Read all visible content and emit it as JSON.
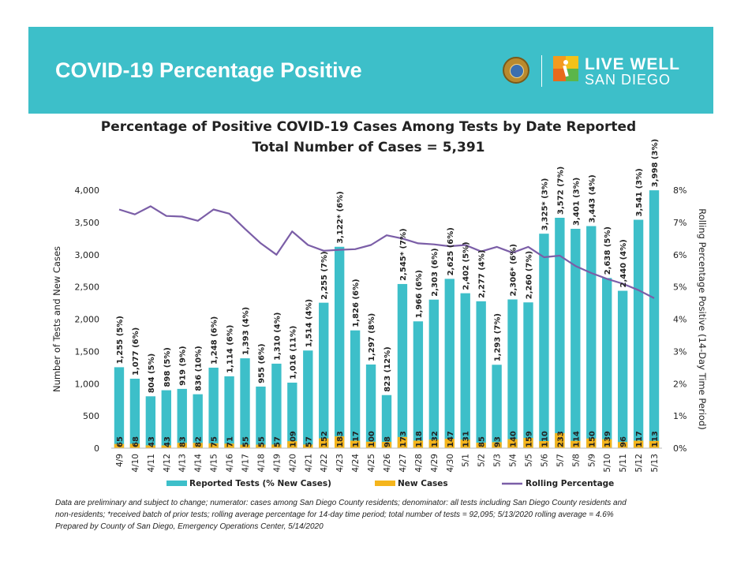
{
  "banner": {
    "title": "COVID-19 Percentage Positive",
    "logo_text_line1": "LIVE WELL",
    "logo_text_line2": "SAN DIEGO",
    "seal_icon": "county-seal-icon",
    "logo_icon": "live-well-figure-icon",
    "color": "#3dbfc9"
  },
  "chart_data": {
    "type": "bar",
    "title": "Percentage of Positive COVID-19 Cases Among Tests by Date Reported",
    "subtitle": "Total Number of Cases = 5,391",
    "ylabel": "Number of Tests and New Cases",
    "y2label": "Rolling Percentage Positive (14-Day Time Period)",
    "ylim": [
      0,
      4000
    ],
    "y2lim": [
      0,
      8
    ],
    "yticks": [
      "0",
      "500",
      "1,000",
      "1,500",
      "2,000",
      "2,500",
      "3,000",
      "3,500",
      "4,000"
    ],
    "y2ticks": [
      "0%",
      "1%",
      "2%",
      "3%",
      "4%",
      "5%",
      "6%",
      "7%",
      "8%"
    ],
    "categories": [
      "4/9",
      "4/10",
      "4/11",
      "4/12",
      "4/13",
      "4/14",
      "4/15",
      "4/16",
      "4/17",
      "4/18",
      "4/19",
      "4/20",
      "4/21",
      "4/22",
      "4/23",
      "4/24",
      "4/25",
      "4/26",
      "4/27",
      "4/28",
      "4/29",
      "4/30",
      "5/1",
      "5/2",
      "5/3",
      "5/4",
      "5/5",
      "5/6",
      "5/7",
      "5/8",
      "5/9",
      "5/10",
      "5/11",
      "5/12",
      "5/13"
    ],
    "series": [
      {
        "name": "Reported Tests (% New Cases)",
        "color": "#3dbfc9",
        "values": [
          1255,
          1077,
          804,
          898,
          919,
          836,
          1248,
          1114,
          1393,
          955,
          1310,
          1016,
          1514,
          2255,
          3122,
          1826,
          1297,
          823,
          2545,
          1966,
          2303,
          2625,
          2402,
          2277,
          1293,
          2306,
          2260,
          3325,
          3572,
          3401,
          3443,
          2638,
          2440,
          3541,
          3998
        ],
        "labels": [
          "1,255 (5%)",
          "1,077 (6%)",
          "804 (5%)",
          "898 (5%)",
          "919 (9%)",
          "836 (10%)",
          "1,248 (6%)",
          "1,114 (6%)",
          "1,393 (4%)",
          "955 (6%)",
          "1,310 (4%)",
          "1,016 (11%)",
          "1,514 (4%)",
          "2,255 (7%)",
          "3,122* (6%)",
          "1,826 (6%)",
          "1,297 (8%)",
          "823 (12%)",
          "2,545* (7%)",
          "1,966 (6%)",
          "2,303 (6%)",
          "2,625 (6%)",
          "2,402 (5%)",
          "2,277 (4%)",
          "1,293 (7%)",
          "2,306* (6%)",
          "2,260 (7%)",
          "3,325* (3%)",
          "3,572 (7%)",
          "3,401 (3%)",
          "3,443 (4%)",
          "2,638 (5%)",
          "2,440 (4%)",
          "3,541 (3%)",
          "3,998 (3%)"
        ]
      },
      {
        "name": "New Cases",
        "color": "#f5b51c",
        "values": [
          65,
          68,
          43,
          43,
          83,
          82,
          75,
          71,
          55,
          55,
          57,
          109,
          57,
          152,
          183,
          117,
          100,
          98,
          173,
          118,
          132,
          147,
          131,
          85,
          93,
          140,
          159,
          110,
          233,
          114,
          150,
          139,
          96,
          117,
          113
        ]
      },
      {
        "name": "Rolling Percentage",
        "color": "#7b5ea7",
        "axis": "right",
        "values": [
          7.4,
          7.25,
          7.5,
          7.2,
          7.18,
          7.05,
          7.4,
          7.27,
          6.8,
          6.35,
          6.0,
          6.72,
          6.3,
          6.12,
          6.15,
          6.17,
          6.3,
          6.6,
          6.5,
          6.35,
          6.32,
          6.26,
          6.3,
          6.1,
          6.24,
          6.06,
          6.24,
          5.92,
          5.97,
          5.65,
          5.43,
          5.25,
          5.1,
          4.9,
          4.65
        ]
      }
    ],
    "legend_position": "bottom",
    "grid": false
  },
  "notes": {
    "line1": "Data are preliminary and subject to change; numerator: cases among San Diego County residents; denominator: all tests including San Diego County residents and",
    "line2": "non-residents; *received batch of prior tests; rolling average percentage for 14-day time period; total number of tests = 92,095; 5/13/2020 rolling average = 4.6%",
    "line3": "Prepared by County of San Diego, Emergency Operations Center, 5/14/2020"
  }
}
